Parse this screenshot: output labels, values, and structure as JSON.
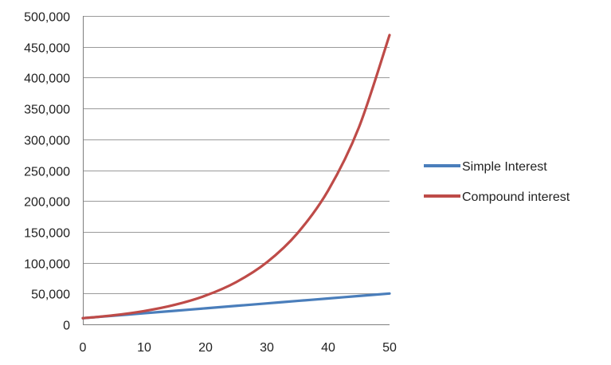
{
  "chart_data": {
    "type": "line",
    "title": "",
    "xlabel": "",
    "ylabel": "",
    "xlim": [
      0,
      50
    ],
    "ylim": [
      0,
      500000
    ],
    "x_ticks": [
      0,
      10,
      20,
      30,
      40,
      50
    ],
    "x_tick_labels": [
      "0",
      "10",
      "20",
      "30",
      "40",
      "50"
    ],
    "y_ticks": [
      0,
      50000,
      100000,
      150000,
      200000,
      250000,
      300000,
      350000,
      400000,
      450000,
      500000
    ],
    "y_tick_labels": [
      "0",
      "50,000",
      "100,000",
      "150,000",
      "200,000",
      "250,000",
      "300,000",
      "350,000",
      "400,000",
      "450,000",
      "500,000"
    ],
    "grid": "horizontal",
    "legend": "right",
    "x": [
      0,
      5,
      10,
      15,
      20,
      25,
      30,
      35,
      40,
      45,
      50
    ],
    "series": [
      {
        "name": "Simple Interest",
        "color": "#4a7ebb",
        "values": [
          10000,
          14000,
          18000,
          22000,
          26000,
          30000,
          34000,
          38000,
          42000,
          46000,
          50000
        ]
      },
      {
        "name": "Compound interest",
        "color": "#be4b48",
        "values": [
          10000,
          14700,
          21600,
          31700,
          46600,
          68500,
          100600,
          147900,
          217200,
          319200,
          469000
        ]
      }
    ]
  }
}
